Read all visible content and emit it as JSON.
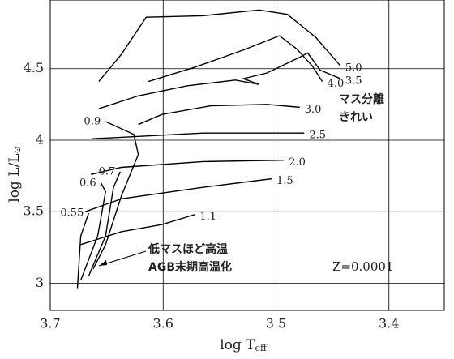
{
  "chart_data": {
    "type": "line",
    "x_label": {
      "main": "log T",
      "sub": "eff"
    },
    "y_label": {
      "main": "log L/L",
      "sub": "⊙"
    },
    "xlim": [
      3.7,
      3.351
    ],
    "ylim": [
      2.81,
      4.98
    ],
    "xticks": [
      3.7,
      3.6,
      3.5,
      3.4
    ],
    "yticks": [
      3,
      3.5,
      4,
      4.5
    ],
    "grid": true,
    "color": "#000000",
    "annotations": [
      "マス分離",
      "きれい",
      "低マスほど高温",
      "AGB末期高温化",
      "Z=0.0001"
    ],
    "series": [
      {
        "name": "5.0",
        "x": [
          3.657,
          3.637,
          3.615,
          3.565,
          3.515,
          3.49,
          3.465,
          3.443
        ],
        "values": [
          4.41,
          4.6,
          4.86,
          4.87,
          4.91,
          4.88,
          4.72,
          4.52
        ]
      },
      {
        "name": "4.0",
        "x": [
          3.613,
          3.572,
          3.529,
          3.497,
          3.482,
          3.468,
          3.459
        ],
        "values": [
          4.41,
          4.51,
          4.63,
          4.73,
          4.64,
          4.52,
          4.41
        ]
      },
      {
        "name": "3.5",
        "x": [
          3.657,
          3.622,
          3.579,
          3.536,
          3.515,
          3.529,
          3.508,
          3.479,
          3.472,
          3.461,
          3.443
        ],
        "values": [
          4.22,
          4.31,
          4.38,
          4.42,
          4.39,
          4.43,
          4.47,
          4.58,
          4.61,
          4.49,
          4.43
        ]
      },
      {
        "name": "3.0",
        "x": [
          3.622,
          3.601,
          3.558,
          3.508,
          3.479
        ],
        "values": [
          4.11,
          4.18,
          4.24,
          4.25,
          4.23
        ]
      },
      {
        "name": "2.5",
        "x": [
          3.663,
          3.637,
          3.565,
          3.493,
          3.475
        ],
        "values": [
          4.01,
          4.02,
          4.05,
          4.05,
          4.05
        ]
      },
      {
        "name": "2.0",
        "x": [
          3.664,
          3.637,
          3.565,
          3.493
        ],
        "values": [
          3.76,
          3.81,
          3.85,
          3.86
        ]
      },
      {
        "name": "1.5",
        "x": [
          3.669,
          3.637,
          3.565,
          3.504
        ],
        "values": [
          3.5,
          3.59,
          3.67,
          3.73
        ]
      },
      {
        "name": "1.1",
        "x": [
          3.673,
          3.637,
          3.601,
          3.572
        ],
        "values": [
          3.27,
          3.36,
          3.41,
          3.48
        ]
      },
      {
        "name": "0.9",
        "x": [
          3.651,
          3.626,
          3.622,
          3.637,
          3.651,
          3.662
        ],
        "values": [
          4.13,
          4.04,
          3.9,
          3.61,
          3.27,
          3.1
        ]
      },
      {
        "name": "0.7",
        "x": [
          3.638,
          3.644,
          3.651,
          3.666
        ],
        "values": [
          3.78,
          3.67,
          3.33,
          3.05
        ]
      },
      {
        "name": "0.6",
        "x": [
          3.655,
          3.651,
          3.658,
          3.673
        ],
        "values": [
          3.7,
          3.64,
          3.33,
          3.02
        ]
      },
      {
        "name": "0.55",
        "x": [
          3.666,
          3.673,
          3.676
        ],
        "values": [
          3.49,
          3.33,
          2.96
        ]
      }
    ]
  }
}
